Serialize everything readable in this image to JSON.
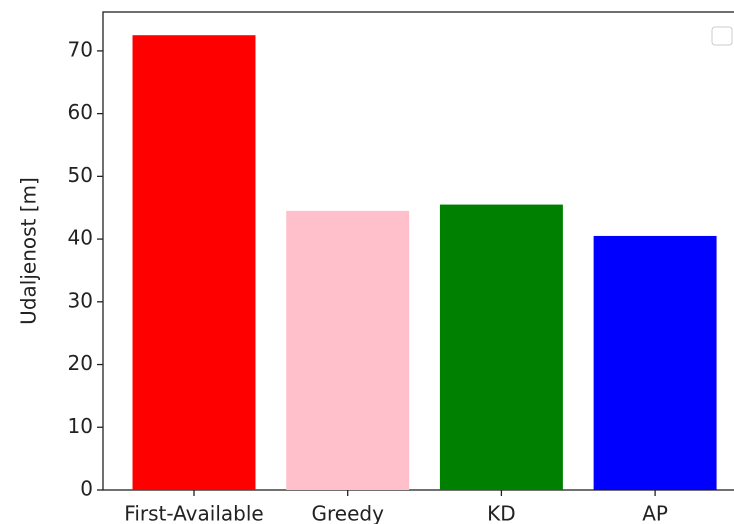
{
  "chart_data": {
    "type": "bar",
    "ylabel": "Udaljenost [m]",
    "categories": [
      "First-Available",
      "Greedy",
      "KD",
      "AP"
    ],
    "values": [
      72.5,
      44.5,
      45.5,
      40.5
    ],
    "colors": [
      "#ff0000",
      "#ffc0cb",
      "#008000",
      "#0000ff"
    ],
    "ylim": [
      0,
      76.2
    ],
    "yticks": [
      0,
      10,
      20,
      30,
      40,
      50,
      60,
      70
    ]
  }
}
